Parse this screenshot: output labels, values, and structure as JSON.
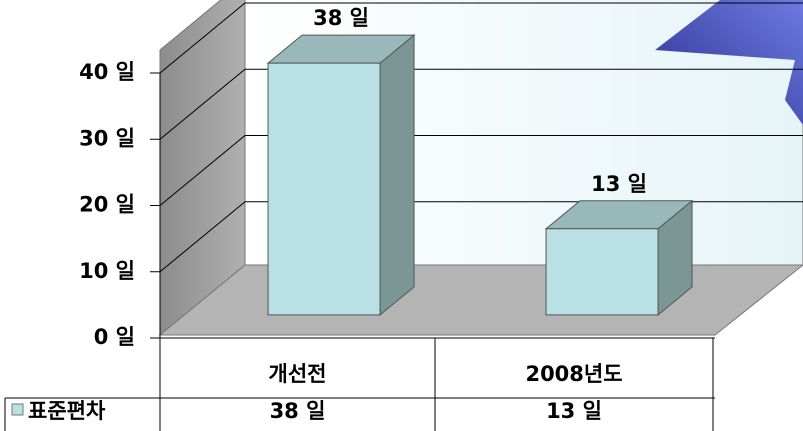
{
  "chart_data": {
    "type": "bar3d",
    "categories": [
      "개선전",
      "2008년도"
    ],
    "series": [
      {
        "name": "표준편차",
        "color": "#b9e0e4",
        "values": [
          38,
          13
        ],
        "value_labels": [
          "38 일",
          "13 일"
        ]
      }
    ],
    "ylim": [
      0,
      40
    ],
    "yticks": [
      {
        "value": 0,
        "label": "0 일"
      },
      {
        "value": 10,
        "label": "10 일"
      },
      {
        "value": 20,
        "label": "20 일"
      },
      {
        "value": 30,
        "label": "30 일"
      },
      {
        "value": 40,
        "label": "40 일"
      }
    ],
    "grid": true
  }
}
